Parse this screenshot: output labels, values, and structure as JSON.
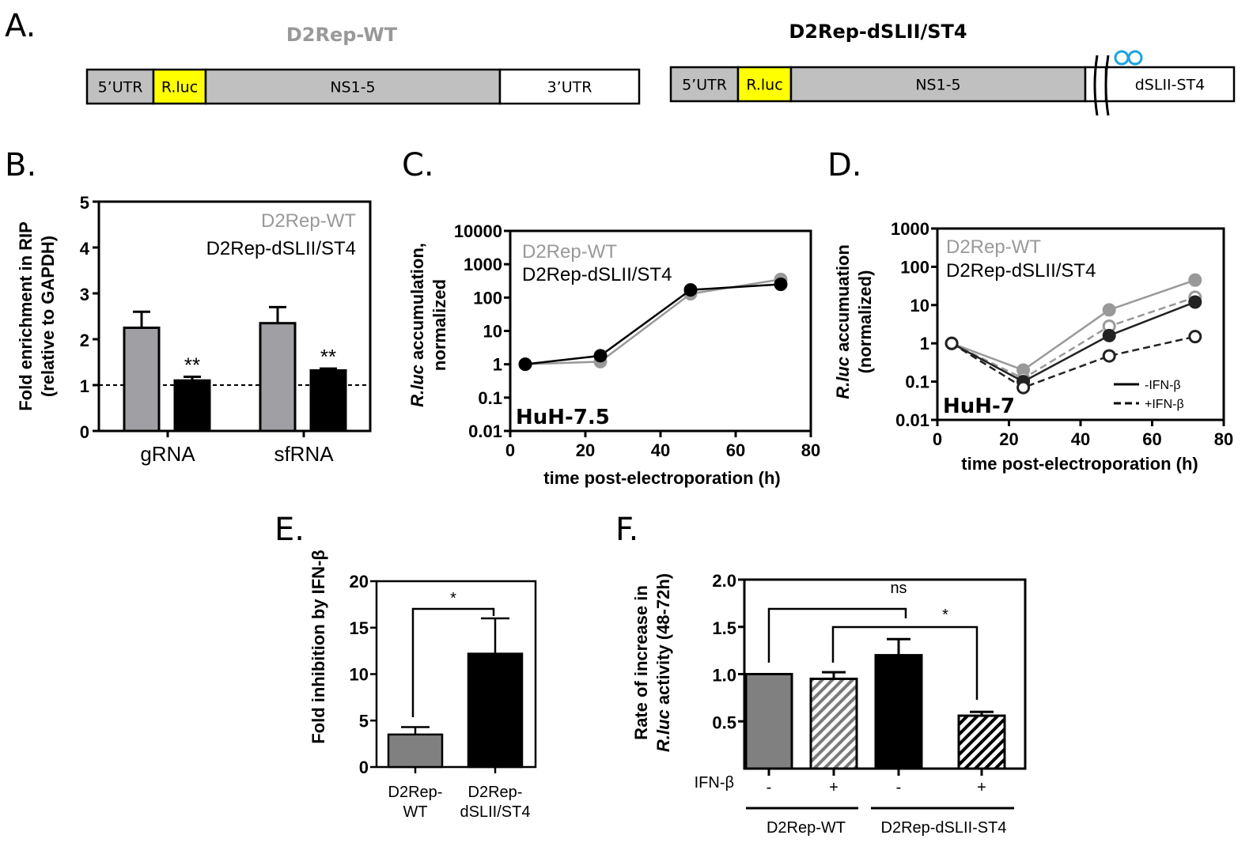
{
  "panel_labels": {
    "a": "A.",
    "b": "B.",
    "c": "C.",
    "d": "D.",
    "e": "E.",
    "f": "F."
  },
  "panel_a": {
    "constructs": [
      {
        "title": "D2Rep-WT",
        "title_color": "#999999",
        "segments": [
          {
            "label": "5’UTR",
            "color": "#c0c0c0"
          },
          {
            "label": "R.luc",
            "color": "#ffff00"
          },
          {
            "label": "NS1-5",
            "color": "#c0c0c0"
          },
          {
            "label": "3’UTR",
            "color": "#ffffff"
          }
        ]
      },
      {
        "title": "D2Rep-dSLII/ST4",
        "title_color": "#000000",
        "segments": [
          {
            "label": "5’UTR",
            "color": "#c0c0c0"
          },
          {
            "label": "R.luc",
            "color": "#ffff00"
          },
          {
            "label": "NS1-5",
            "color": "#c0c0c0"
          },
          {
            "label": "dSLII-ST4",
            "color": "#ffffff"
          }
        ],
        "deletion_marker_icon": "stem-loop-deletion-icon",
        "deletion_marker_color": "#1aa3e0"
      }
    ]
  },
  "chart_data": [
    {
      "panel": "B",
      "type": "bar",
      "title": "",
      "xlabel": "",
      "ylabel": "Fold enrichment in RIP (relative to GAPDH)",
      "ylabel_lines": [
        "Fold enrichment in RIP",
        "(relative to GAPDH)"
      ],
      "ylim": [
        0,
        5
      ],
      "yticks": [
        "0",
        "1",
        "2",
        "3",
        "4",
        "5"
      ],
      "categories": [
        "gRNA",
        "sfRNA"
      ],
      "series": [
        {
          "name": "D2Rep-WT",
          "color": "#a0a0a4",
          "values": [
            2.25,
            2.35
          ],
          "errors": [
            0.35,
            0.35
          ]
        },
        {
          "name": "D2Rep-dSLII/ST4",
          "color": "#000000",
          "values": [
            1.1,
            1.32
          ],
          "errors": [
            0.08,
            0.04
          ]
        }
      ],
      "reference_line": 1,
      "annotations": [
        "**",
        "**"
      ],
      "legend": [
        "D2Rep-WT",
        "D2Rep-dSLII/ST4"
      ],
      "legend_position": "top-right"
    },
    {
      "panel": "C",
      "type": "line",
      "title": "",
      "xlabel": "time post-electroporation (h)",
      "ylabel_lines": [
        "R.luc accumulation,",
        "normalized"
      ],
      "ylabel_italic": "R.luc",
      "yscale": "log",
      "ylim": [
        0.01,
        10000
      ],
      "yticks": [
        "0.01",
        "0.1",
        "1",
        "10",
        "100",
        "1000",
        "10000"
      ],
      "xlim": [
        0,
        80
      ],
      "xticks": [
        "0",
        "20",
        "40",
        "60",
        "80"
      ],
      "x": [
        4,
        24,
        48,
        72
      ],
      "series": [
        {
          "name": "D2Rep-WT",
          "color": "#999999",
          "values": [
            1,
            1.2,
            130,
            350
          ]
        },
        {
          "name": "D2Rep-dSLII/ST4",
          "color": "#000000",
          "values": [
            1,
            1.8,
            170,
            250
          ]
        }
      ],
      "cell_line": "HuH-7.5",
      "legend": [
        "D2Rep-WT",
        "D2Rep-dSLII/ST4"
      ],
      "legend_position": "top-left"
    },
    {
      "panel": "D",
      "type": "line",
      "title": "",
      "xlabel": "time post-electroporation (h)",
      "ylabel_lines": [
        "R.luc accumuation",
        "(normalized)"
      ],
      "ylabel_italic": "R.luc",
      "yscale": "log",
      "ylim": [
        0.01,
        1000
      ],
      "yticks": [
        "0.01",
        "0.1",
        "1",
        "10",
        "100",
        "1000"
      ],
      "xlim": [
        0,
        80
      ],
      "xticks": [
        "0",
        "20",
        "40",
        "60",
        "80"
      ],
      "x": [
        4,
        24,
        48,
        72
      ],
      "series": [
        {
          "name": "D2Rep-WT -IFN-β",
          "color": "#999999",
          "dashed": false,
          "filled": true,
          "values": [
            1,
            0.2,
            7.5,
            45
          ]
        },
        {
          "name": "D2Rep-WT +IFN-β",
          "color": "#999999",
          "dashed": true,
          "filled": false,
          "values": [
            1,
            0.12,
            2.8,
            16
          ]
        },
        {
          "name": "D2Rep-dSLII/ST4 -IFN-β",
          "color": "#222222",
          "dashed": false,
          "filled": true,
          "values": [
            1,
            0.1,
            1.6,
            12
          ]
        },
        {
          "name": "D2Rep-dSLII/ST4 +IFN-β",
          "color": "#222222",
          "dashed": true,
          "filled": false,
          "values": [
            1,
            0.07,
            0.47,
            1.5
          ]
        }
      ],
      "cell_line": "HuH-7",
      "legend": [
        "D2Rep-WT",
        "D2Rep-dSLII/ST4"
      ],
      "line_legend": [
        "-IFN-β",
        "+IFN-β"
      ],
      "legend_position": "top-left"
    },
    {
      "panel": "E",
      "type": "bar",
      "title": "",
      "xlabel": "",
      "ylabel": "Fold inhibition by IFN-β",
      "ylim": [
        0,
        20
      ],
      "yticks": [
        "0",
        "5",
        "10",
        "15",
        "20"
      ],
      "categories": [
        [
          "D2Rep-",
          "WT"
        ],
        [
          "D2Rep-",
          "dSLII/ST4"
        ]
      ],
      "values": [
        3.5,
        12.2
      ],
      "errors": [
        0.8,
        3.8
      ],
      "colors": [
        "#808080",
        "#000000"
      ],
      "significance": "*"
    },
    {
      "panel": "F",
      "type": "bar",
      "title": "",
      "xlabel": "",
      "ylabel_lines": [
        "Rate of increase in",
        "R.luc activity (48-72h)"
      ],
      "ylabel_italic": "R.luc",
      "ylim": [
        0,
        2.0
      ],
      "yticks": [
        "0.5",
        "1.0",
        "1.5",
        "2.0"
      ],
      "ifn_label": "IFN-β",
      "ifn_signs": [
        "-",
        "+",
        "-",
        "+"
      ],
      "groups": [
        "D2Rep-WT",
        "D2Rep-dSLII-ST4"
      ],
      "values": [
        1.0,
        0.95,
        1.2,
        0.56
      ],
      "errors": [
        0,
        0.07,
        0.17,
        0.04
      ],
      "fills": [
        "solid-gray",
        "hatched-gray",
        "solid-black",
        "hatched-black"
      ],
      "significance": [
        {
          "label": "ns"
        },
        {
          "label": "*"
        }
      ]
    }
  ]
}
